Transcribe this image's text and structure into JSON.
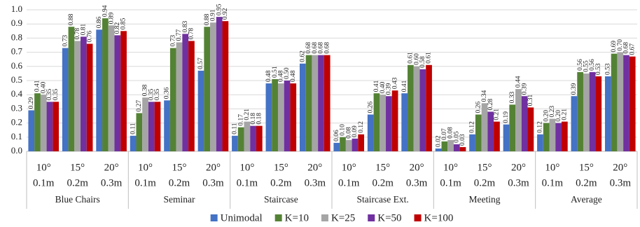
{
  "chart_data": {
    "type": "bar",
    "categories": [
      "10°",
      "15°",
      "20°",
      "10°",
      "15°",
      "20°",
      "10°",
      "15°",
      "20°",
      "10°",
      "15°",
      "20°",
      "10°",
      "15°",
      "20°",
      "10°",
      "15°",
      "20°"
    ],
    "category_sublabels": [
      "0.1m",
      "0.2m",
      "0.3m",
      "0.1m",
      "0.2m",
      "0.3m",
      "0.1m",
      "0.2m",
      "0.3m",
      "0.1m",
      "0.2m",
      "0.3m",
      "0.1m",
      "0.2m",
      "0.3m",
      "0.1m",
      "0.2m",
      "0.3m"
    ],
    "groups": [
      "Blue Chairs",
      "Seminar",
      "Staircase",
      "Staircase Ext.",
      "Meeting",
      "Average"
    ],
    "series": [
      {
        "name": "Unimodal",
        "color": "#4472c4",
        "values": [
          0.29,
          0.73,
          0.86,
          0.11,
          0.36,
          0.57,
          0.11,
          0.48,
          0.62,
          0.06,
          0.26,
          0.41,
          0.02,
          0.12,
          0.19,
          0.12,
          0.39,
          0.53
        ],
        "value_labels": [
          "0.29",
          "0.73",
          "0.86",
          "0.11",
          "0.36",
          "0.57",
          "0.11",
          "0.48",
          "0.62",
          "0.06",
          "0.26",
          "0.41",
          "0.02",
          "0.12",
          "0.19",
          "0.12",
          "0.39",
          "0.53"
        ]
      },
      {
        "name": "K=10",
        "color": "#548235",
        "values": [
          0.41,
          0.88,
          0.94,
          0.27,
          0.73,
          0.88,
          0.17,
          0.51,
          0.68,
          0.1,
          0.41,
          0.61,
          0.07,
          0.26,
          0.33,
          0.2,
          0.56,
          0.69
        ],
        "value_labels": [
          "0.41",
          "0.88",
          "0.94",
          "0.27",
          "0.73",
          "0.88",
          "0.17",
          "0.51",
          "0.68",
          "0.10",
          "0.41",
          "0.61",
          "0.07",
          "0.26",
          "0.33",
          "0.20",
          "0.56",
          "0.69"
        ]
      },
      {
        "name": "K=25",
        "color": "#a5a5a5",
        "values": [
          0.4,
          0.78,
          0.89,
          0.38,
          0.77,
          0.91,
          0.21,
          0.48,
          0.68,
          0.08,
          0.4,
          0.6,
          0.08,
          0.34,
          0.44,
          0.23,
          0.55,
          0.7
        ],
        "value_labels": [
          "0.40",
          "0.78",
          "0.89",
          "0.38",
          "0.77",
          "0.91",
          "0.21",
          "0.48",
          "0.68",
          "0.08",
          "0.40",
          "0.60",
          "0.08",
          "0.34",
          "0.44",
          "0.23",
          "0.55",
          "0.70"
        ]
      },
      {
        "name": "K=50",
        "color": "#7030a0",
        "values": [
          0.35,
          0.81,
          0.82,
          0.35,
          0.83,
          0.95,
          0.18,
          0.5,
          0.68,
          0.09,
          0.39,
          0.58,
          0.05,
          0.28,
          0.39,
          0.2,
          0.56,
          0.68
        ],
        "value_labels": [
          "0.35",
          "0.81",
          "0.82",
          "0.35",
          "0.83",
          "0.95",
          "0.18",
          "0.50",
          "0.68",
          "0.09",
          "0.39",
          "0.58",
          "0.05",
          "0.28",
          "0.39",
          "0.20",
          "0.56",
          "0.68"
        ]
      },
      {
        "name": "K=100",
        "color": "#c00000",
        "values": [
          0.35,
          0.76,
          0.85,
          0.35,
          0.78,
          0.92,
          0.18,
          0.48,
          0.68,
          0.12,
          0.43,
          0.61,
          0.03,
          0.21,
          0.31,
          0.21,
          0.53,
          0.67
        ],
        "value_labels": [
          "0.35",
          "0.76",
          "0.85",
          "0.35",
          "0.78",
          "0.92",
          "0.18",
          "0.48",
          "0.68",
          "0.12",
          "0.43",
          "0.61",
          "0.03",
          "0.21",
          "0.31",
          "0.21",
          "0.53",
          "0.67"
        ]
      }
    ],
    "ylim": [
      0,
      1
    ],
    "yticks": [
      {
        "value": 0,
        "label": "0.0"
      },
      0.1,
      0.2,
      0.3,
      0.4,
      0.5,
      0.6,
      0.7,
      0.8,
      0.9,
      {
        "value": 1,
        "label": "1.0"
      }
    ],
    "grid": true,
    "legend": "bottom"
  }
}
